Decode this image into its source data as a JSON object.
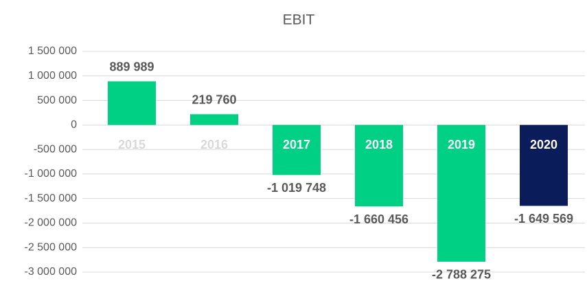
{
  "chart_data": {
    "type": "bar",
    "title": "EBIT",
    "categories": [
      "2015",
      "2016",
      "2017",
      "2018",
      "2019",
      "2020"
    ],
    "values": [
      889989,
      219760,
      -1019748,
      -1660456,
      -2788275,
      -1649569
    ],
    "value_labels": [
      "889 989",
      "219 760",
      "-1 019 748",
      "-1 660 456",
      "-2 788 275",
      "-1 649 569"
    ],
    "colors": [
      "#00d084",
      "#00d084",
      "#00d084",
      "#00d084",
      "#00d084",
      "#0b1c5a"
    ],
    "ylim": [
      -3000000,
      1500000
    ],
    "yticks": [
      {
        "value": -3000000,
        "label": "-3 000 000"
      },
      {
        "value": -2500000,
        "label": "-2 500 000"
      },
      {
        "value": -2000000,
        "label": "-2 000 000"
      },
      {
        "value": -1500000,
        "label": "-1 500 000"
      },
      {
        "value": -1000000,
        "label": "-1 000 000"
      },
      {
        "value": -500000,
        "label": "-500 000"
      },
      0,
      {
        "value": 500000,
        "label": "500 000"
      },
      {
        "value": 1000000,
        "label": "1 000 000"
      },
      {
        "value": 1500000,
        "label": "1 500 000"
      }
    ],
    "grid": true
  }
}
